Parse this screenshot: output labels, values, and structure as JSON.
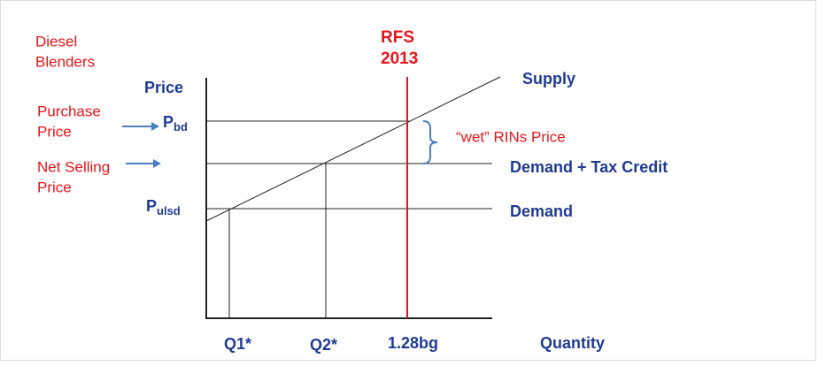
{
  "diagram": {
    "blender_label": [
      "Diesel",
      "Blenders"
    ],
    "purchase_price_label": [
      "Purchase",
      "Price"
    ],
    "net_selling_price_label": [
      "Net Selling",
      "Price"
    ],
    "y_axis_label": "Price",
    "p_bd": {
      "main": "P",
      "sub": "bd"
    },
    "p_ulsd": {
      "main": "P",
      "sub": "ulsd"
    },
    "rfs_label": [
      "RFS",
      "2013"
    ],
    "rins_label": "“wet” RINs Price",
    "supply_label": "Supply",
    "demand_tax_label": "Demand + Tax Credit",
    "demand_label": "Demand",
    "x_labels": [
      "Q1*",
      "Q2*",
      "1.28bg"
    ],
    "x_axis_label": "Quantity"
  }
}
